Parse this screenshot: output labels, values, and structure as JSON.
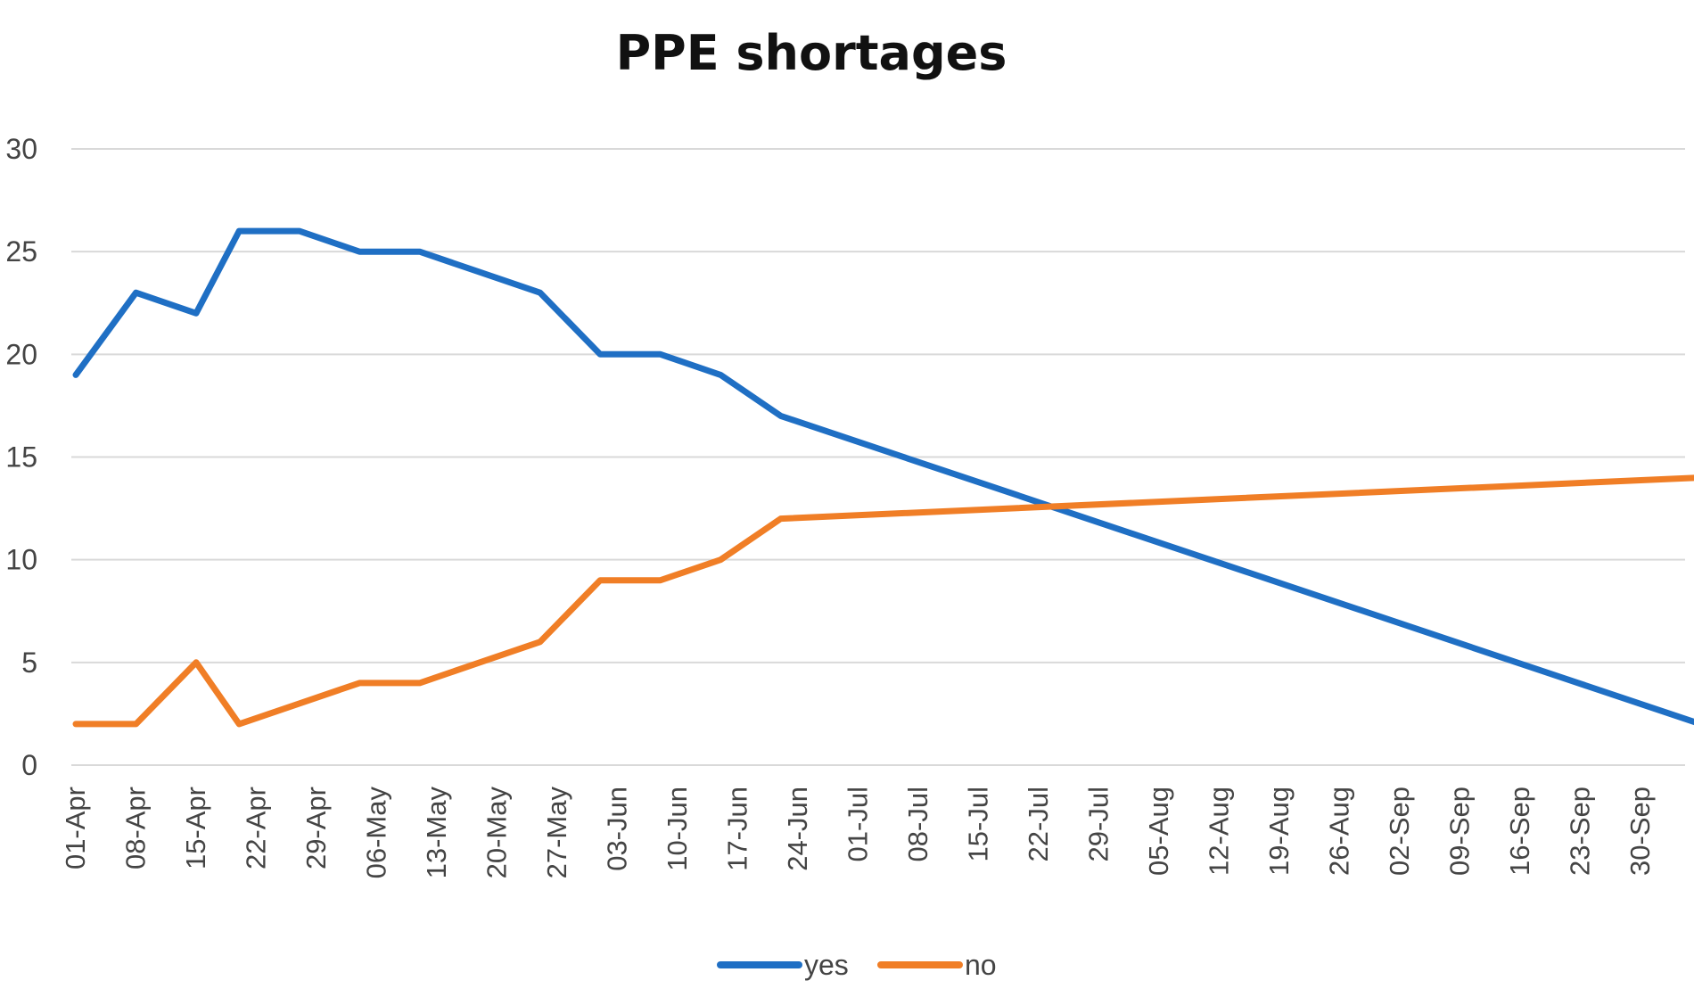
{
  "chart_data": {
    "type": "line",
    "title": "PPE shortages",
    "xlabel": "",
    "ylabel": "",
    "ylim": [
      0,
      30
    ],
    "yticks": [
      0,
      5,
      10,
      15,
      20,
      25,
      30
    ],
    "grid": true,
    "legend_position": "bottom",
    "categories": [
      "01-Apr",
      "08-Apr",
      "15-Apr",
      "22-Apr",
      "29-Apr",
      "06-May",
      "13-May",
      "20-May",
      "27-May",
      "03-Jun",
      "10-Jun",
      "17-Jun",
      "24-Jun",
      "01-Jul",
      "08-Jul",
      "15-Jul",
      "22-Jul",
      "29-Jul",
      "05-Aug",
      "12-Aug",
      "19-Aug",
      "26-Aug",
      "02-Sep",
      "09-Sep",
      "16-Sep",
      "23-Sep",
      "30-Sep"
    ],
    "series": [
      {
        "name": "yes",
        "color": "#1f6fc4",
        "points": [
          {
            "x": "01-Apr",
            "y": 19
          },
          {
            "x": "08-Apr",
            "y": 23
          },
          {
            "x": "15-Apr",
            "y": 22
          },
          {
            "x": "20-Apr",
            "y": 26
          },
          {
            "x": "27-Apr",
            "y": 26
          },
          {
            "x": "04-May",
            "y": 25
          },
          {
            "x": "11-May",
            "y": 25
          },
          {
            "x": "18-May",
            "y": 24
          },
          {
            "x": "25-May",
            "y": 23
          },
          {
            "x": "01-Jun",
            "y": 20
          },
          {
            "x": "08-Jun",
            "y": 20
          },
          {
            "x": "15-Jun",
            "y": 19
          },
          {
            "x": "22-Jun",
            "y": 17
          },
          {
            "x": "07-Oct",
            "y": 2
          }
        ]
      },
      {
        "name": "no",
        "color": "#f07e26",
        "points": [
          {
            "x": "01-Apr",
            "y": 2
          },
          {
            "x": "08-Apr",
            "y": 2
          },
          {
            "x": "15-Apr",
            "y": 5
          },
          {
            "x": "20-Apr",
            "y": 2
          },
          {
            "x": "27-Apr",
            "y": 3
          },
          {
            "x": "04-May",
            "y": 4
          },
          {
            "x": "11-May",
            "y": 4
          },
          {
            "x": "18-May",
            "y": 5
          },
          {
            "x": "25-May",
            "y": 6
          },
          {
            "x": "01-Jun",
            "y": 9
          },
          {
            "x": "08-Jun",
            "y": 9
          },
          {
            "x": "15-Jun",
            "y": 10
          },
          {
            "x": "22-Jun",
            "y": 12
          },
          {
            "x": "07-Oct",
            "y": 14
          }
        ]
      }
    ]
  }
}
